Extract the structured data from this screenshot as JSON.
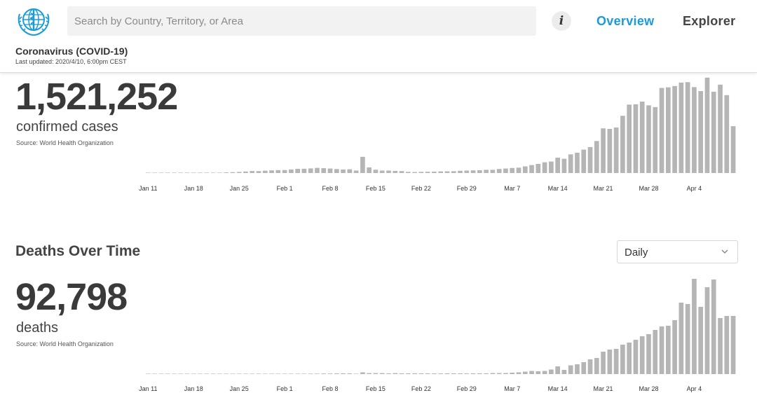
{
  "header": {
    "search_placeholder": "Search by Country, Territory, or Area",
    "info_label": "i",
    "nav": {
      "overview": "Overview",
      "explorer": "Explorer"
    },
    "active_nav": "overview",
    "accent_color": "#1a9bd7",
    "title": "Coronavirus (COVID-19)",
    "last_updated": "Last updated: 2020/4/10, 6:00pm CEST"
  },
  "cases": {
    "total": "1,521,252",
    "label": "confirmed cases",
    "source": "Source: World Health Organization"
  },
  "deaths": {
    "section_title": "Deaths Over Time",
    "dropdown_value": "Daily",
    "total": "92,798",
    "label": "deaths",
    "source": "Source: World Health Organization"
  },
  "chart_data": [
    {
      "type": "bar",
      "name": "confirmed-cases-daily",
      "x_ticks": [
        "Jan 11",
        "Jan 18",
        "Jan 25",
        "Feb 1",
        "Feb 8",
        "Feb 15",
        "Feb 22",
        "Feb 29",
        "Mar 7",
        "Mar 14",
        "Mar 21",
        "Mar 28",
        "Apr 4"
      ],
      "categories": [
        "Jan 11",
        "Jan 12",
        "Jan 13",
        "Jan 14",
        "Jan 15",
        "Jan 16",
        "Jan 17",
        "Jan 18",
        "Jan 19",
        "Jan 20",
        "Jan 21",
        "Jan 22",
        "Jan 23",
        "Jan 24",
        "Jan 25",
        "Jan 26",
        "Jan 27",
        "Jan 28",
        "Jan 29",
        "Jan 30",
        "Jan 31",
        "Feb 1",
        "Feb 2",
        "Feb 3",
        "Feb 4",
        "Feb 5",
        "Feb 6",
        "Feb 7",
        "Feb 8",
        "Feb 9",
        "Feb 10",
        "Feb 11",
        "Feb 12",
        "Feb 13",
        "Feb 14",
        "Feb 15",
        "Feb 16",
        "Feb 17",
        "Feb 18",
        "Feb 19",
        "Feb 20",
        "Feb 21",
        "Feb 22",
        "Feb 23",
        "Feb 24",
        "Feb 25",
        "Feb 26",
        "Feb 27",
        "Feb 28",
        "Feb 29",
        "Mar 1",
        "Mar 2",
        "Mar 3",
        "Mar 4",
        "Mar 5",
        "Mar 6",
        "Mar 7",
        "Mar 8",
        "Mar 9",
        "Mar 10",
        "Mar 11",
        "Mar 12",
        "Mar 13",
        "Mar 14",
        "Mar 15",
        "Mar 16",
        "Mar 17",
        "Mar 18",
        "Mar 19",
        "Mar 20",
        "Mar 21",
        "Mar 22",
        "Mar 23",
        "Mar 24",
        "Mar 25",
        "Mar 26",
        "Mar 27",
        "Mar 28",
        "Mar 29",
        "Mar 30",
        "Mar 31",
        "Apr 1",
        "Apr 2",
        "Apr 3",
        "Apr 4",
        "Apr 5",
        "Apr 6",
        "Apr 7",
        "Apr 8",
        "Apr 9",
        "Apr 10"
      ],
      "values": [
        0,
        0,
        0,
        0,
        0,
        0,
        0,
        0,
        0,
        0,
        200,
        300,
        600,
        800,
        1000,
        1400,
        1900,
        1800,
        2200,
        2500,
        2700,
        2800,
        3300,
        3900,
        4000,
        4300,
        4800,
        4500,
        4200,
        3700,
        3300,
        3500,
        2300,
        15100,
        5200,
        3100,
        2300,
        2300,
        2000,
        1800,
        1100,
        900,
        1100,
        1200,
        1300,
        1500,
        1600,
        1700,
        2100,
        2300,
        2500,
        2600,
        3000,
        3000,
        3800,
        4200,
        4700,
        5000,
        6200,
        7400,
        8500,
        10000,
        10700,
        14300,
        13300,
        17400,
        18900,
        21800,
        24200,
        29800,
        41600,
        41100,
        42400,
        53300,
        63700,
        64000,
        66500,
        63000,
        61400,
        79200,
        79800,
        81000,
        84200,
        84600,
        80000,
        76300,
        88800,
        75700,
        82300,
        72500,
        43600
      ],
      "ylim": [
        0,
        90000
      ],
      "color": "#b5b5b5"
    },
    {
      "type": "bar",
      "name": "deaths-daily",
      "x_ticks": [
        "Jan 11",
        "Jan 18",
        "Jan 25",
        "Feb 1",
        "Feb 8",
        "Feb 15",
        "Feb 22",
        "Feb 29",
        "Mar 7",
        "Mar 14",
        "Mar 21",
        "Mar 28",
        "Apr 4"
      ],
      "categories": [
        "Jan 11",
        "Jan 12",
        "Jan 13",
        "Jan 14",
        "Jan 15",
        "Jan 16",
        "Jan 17",
        "Jan 18",
        "Jan 19",
        "Jan 20",
        "Jan 21",
        "Jan 22",
        "Jan 23",
        "Jan 24",
        "Jan 25",
        "Jan 26",
        "Jan 27",
        "Jan 28",
        "Jan 29",
        "Jan 30",
        "Jan 31",
        "Feb 1",
        "Feb 2",
        "Feb 3",
        "Feb 4",
        "Feb 5",
        "Feb 6",
        "Feb 7",
        "Feb 8",
        "Feb 9",
        "Feb 10",
        "Feb 11",
        "Feb 12",
        "Feb 13",
        "Feb 14",
        "Feb 15",
        "Feb 16",
        "Feb 17",
        "Feb 18",
        "Feb 19",
        "Feb 20",
        "Feb 21",
        "Feb 22",
        "Feb 23",
        "Feb 24",
        "Feb 25",
        "Feb 26",
        "Feb 27",
        "Feb 28",
        "Feb 29",
        "Mar 1",
        "Mar 2",
        "Mar 3",
        "Mar 4",
        "Mar 5",
        "Mar 6",
        "Mar 7",
        "Mar 8",
        "Mar 9",
        "Mar 10",
        "Mar 11",
        "Mar 12",
        "Mar 13",
        "Mar 14",
        "Mar 15",
        "Mar 16",
        "Mar 17",
        "Mar 18",
        "Mar 19",
        "Mar 20",
        "Mar 21",
        "Mar 22",
        "Mar 23",
        "Mar 24",
        "Mar 25",
        "Mar 26",
        "Mar 27",
        "Mar 28",
        "Mar 29",
        "Mar 30",
        "Mar 31",
        "Apr 1",
        "Apr 2",
        "Apr 3",
        "Apr 4",
        "Apr 5",
        "Apr 6",
        "Apr 7",
        "Apr 8",
        "Apr 9",
        "Apr 10"
      ],
      "values": [
        0,
        0,
        0,
        0,
        0,
        0,
        0,
        0,
        0,
        0,
        0,
        0,
        0,
        5,
        10,
        15,
        25,
        25,
        35,
        40,
        45,
        45,
        55,
        60,
        65,
        70,
        75,
        85,
        85,
        95,
        105,
        100,
        5,
        250,
        140,
        140,
        140,
        100,
        140,
        110,
        110,
        115,
        110,
        95,
        95,
        95,
        100,
        100,
        100,
        90,
        100,
        110,
        100,
        150,
        150,
        150,
        200,
        250,
        350,
        450,
        400,
        450,
        650,
        1100,
        600,
        1250,
        1400,
        1700,
        2100,
        2300,
        3200,
        3500,
        3600,
        4200,
        4500,
        4900,
        5400,
        5700,
        6300,
        6800,
        6900,
        7700,
        10200,
        10000,
        13600,
        9600,
        12400,
        13500,
        8000,
        8300,
        8300
      ],
      "ylim": [
        0,
        14000
      ],
      "color": "#b5b5b5"
    }
  ]
}
